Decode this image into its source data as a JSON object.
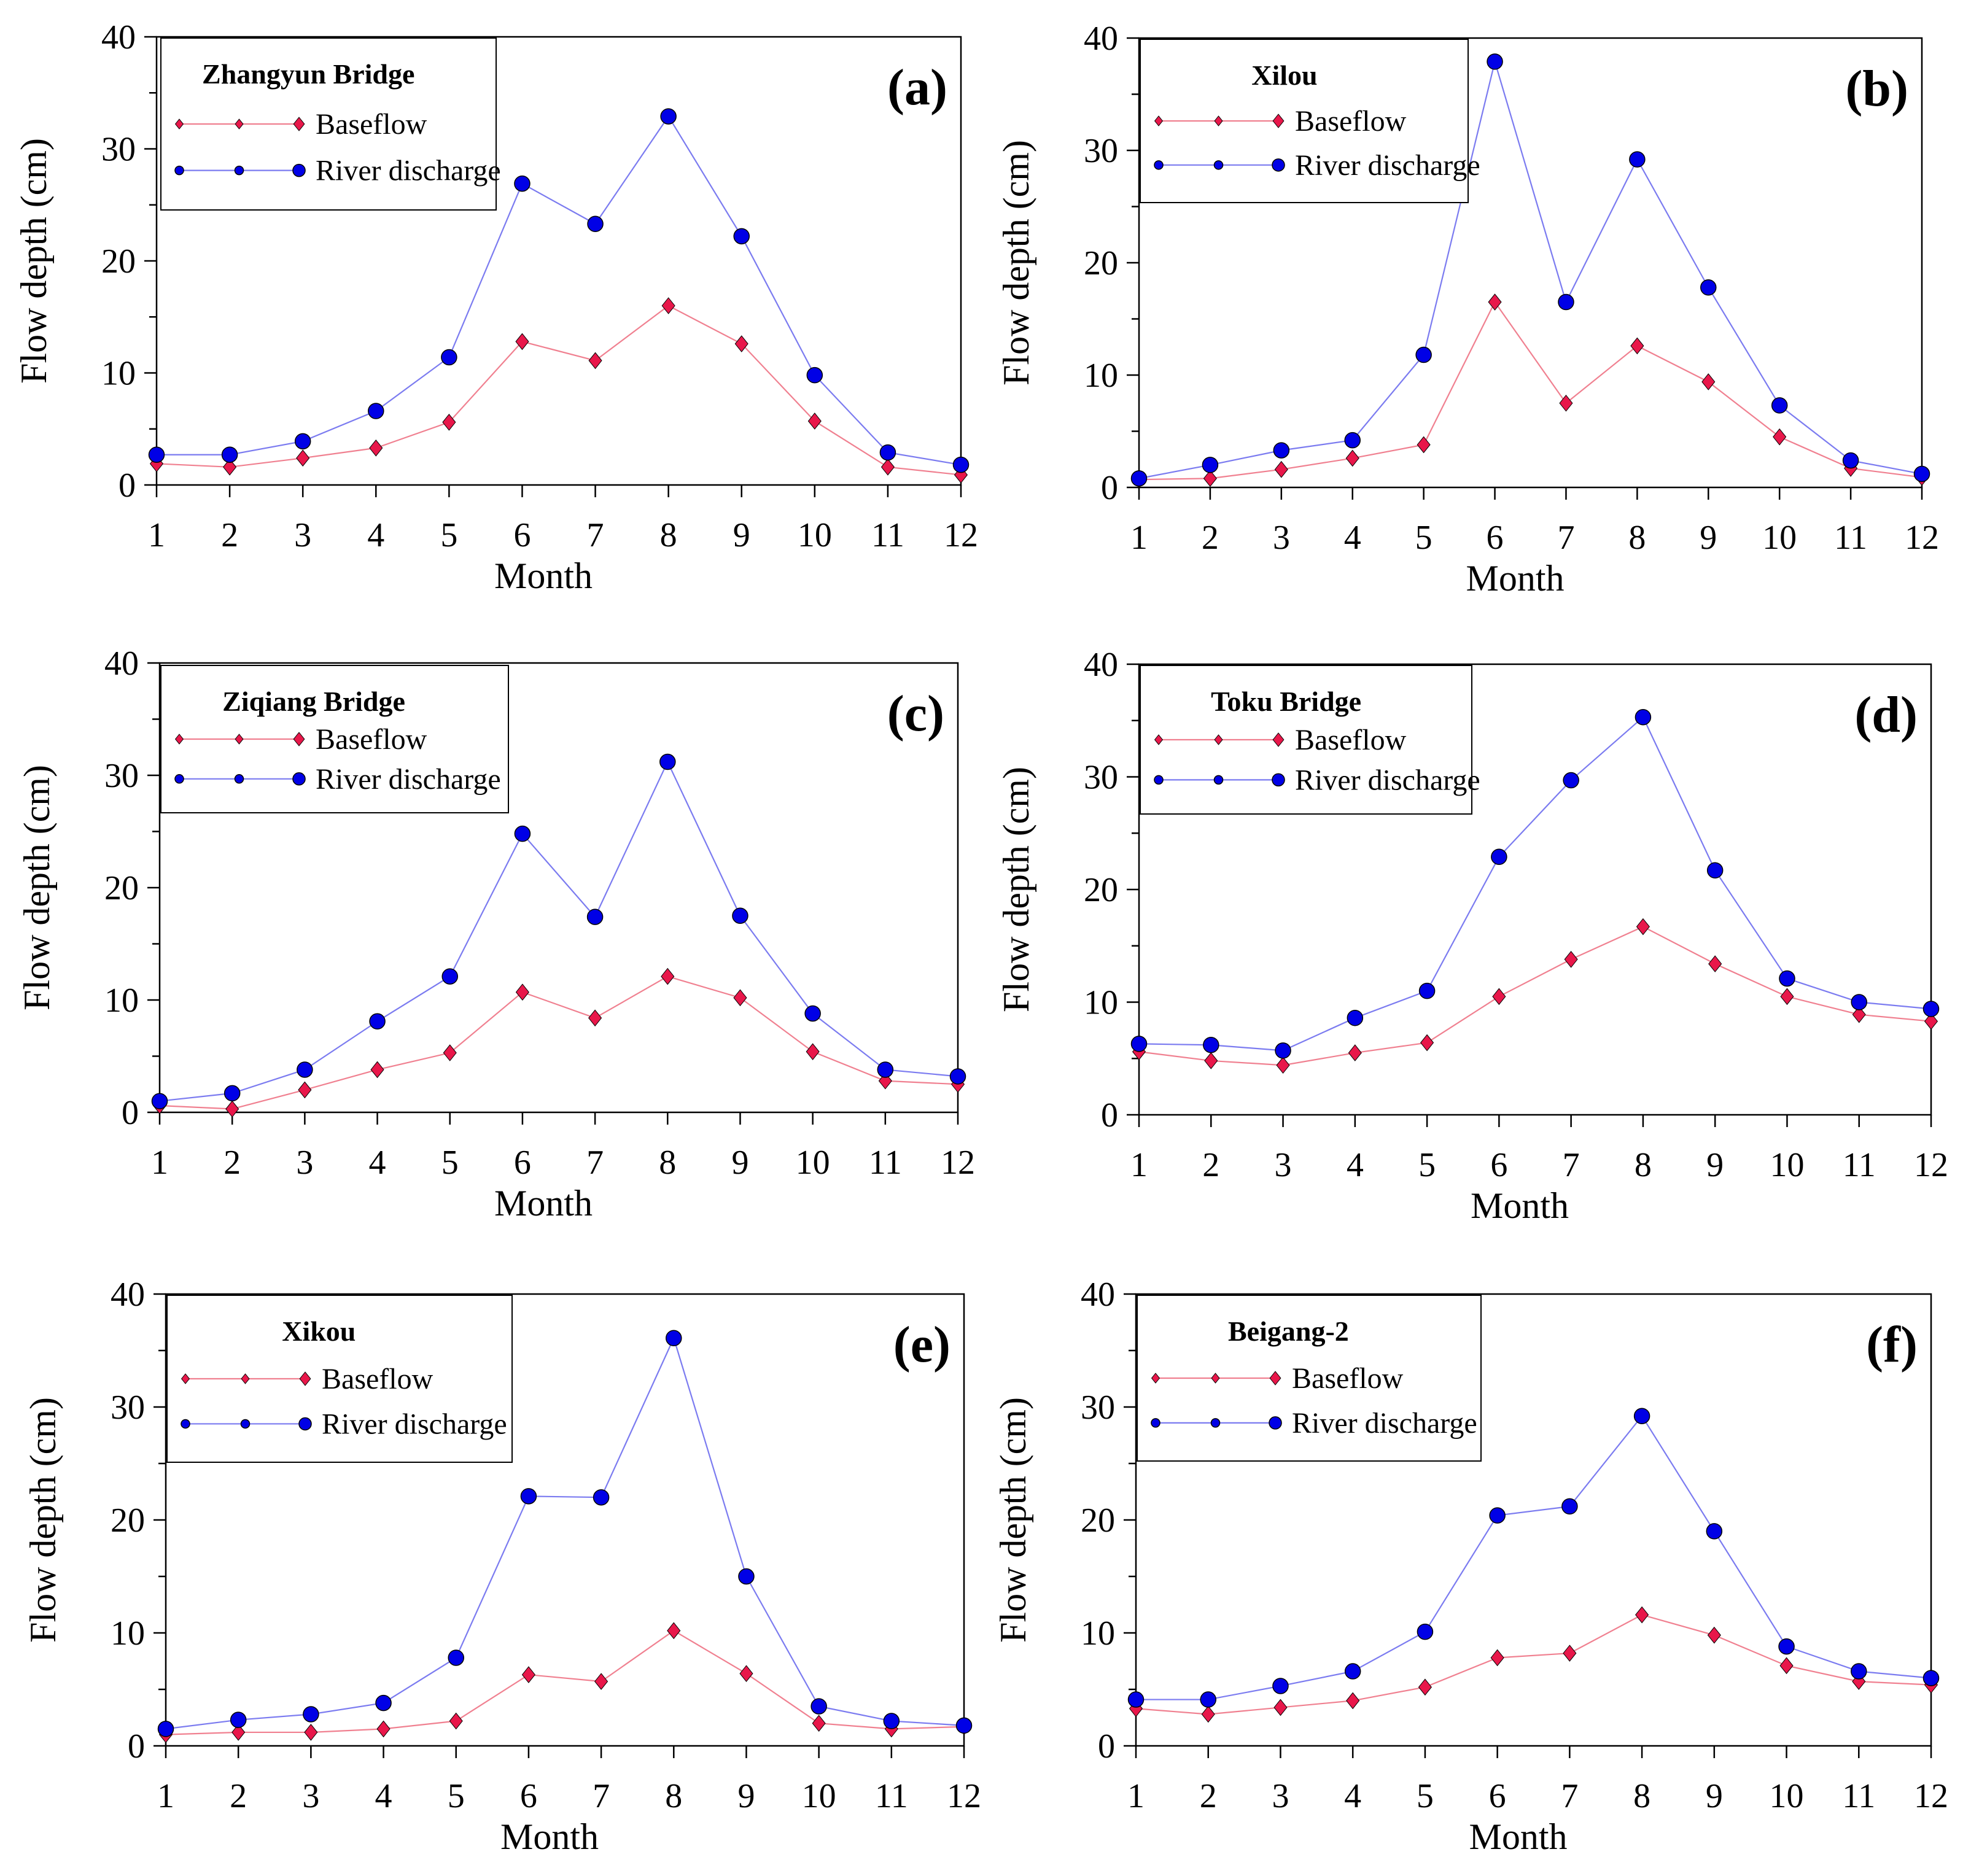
{
  "figure": {
    "panel_count": 6
  },
  "chart_data": [
    {
      "type": "line",
      "panel": "(a)",
      "station": "Zhangyun Bridge",
      "xlabel": "Month",
      "ylabel": "Flow depth (cm)",
      "ylim": [
        0,
        40
      ],
      "yticks": [
        "0",
        "10",
        "20",
        "30",
        "40"
      ],
      "categories": [
        "1",
        "2",
        "3",
        "4",
        "5",
        "6",
        "7",
        "8",
        "9",
        "10",
        "11",
        "12"
      ],
      "series": [
        {
          "name": "Baseflow",
          "color": "#e8174a",
          "marker": "diamond",
          "line_color": "#f08090",
          "values": [
            1.9,
            1.6,
            2.4,
            3.3,
            5.6,
            12.8,
            11.1,
            16.0,
            12.6,
            5.7,
            1.6,
            0.9
          ]
        },
        {
          "name": "River discharge",
          "color": "#0000e6",
          "marker": "circle",
          "line_color": "#7b7bf0",
          "values": [
            2.7,
            2.7,
            3.9,
            6.6,
            11.4,
            26.9,
            23.3,
            32.9,
            22.2,
            9.8,
            2.9,
            1.8
          ]
        }
      ]
    },
    {
      "type": "line",
      "panel": "(b)",
      "station": "Xilou",
      "xlabel": "Month",
      "ylabel": "Flow depth (cm)",
      "ylim": [
        0,
        40
      ],
      "yticks": [
        "0",
        "10",
        "20",
        "30",
        "40"
      ],
      "categories": [
        "1",
        "2",
        "3",
        "4",
        "5",
        "6",
        "7",
        "8",
        "9",
        "10",
        "11",
        "12"
      ],
      "series": [
        {
          "name": "Baseflow",
          "color": "#e8174a",
          "marker": "diamond",
          "line_color": "#f08090",
          "values": [
            0.7,
            0.8,
            1.6,
            2.6,
            3.8,
            16.5,
            7.5,
            12.6,
            9.4,
            4.5,
            1.7,
            0.9
          ]
        },
        {
          "name": "River discharge",
          "color": "#0000e6",
          "marker": "circle",
          "line_color": "#7b7bf0",
          "values": [
            0.8,
            2.0,
            3.3,
            4.2,
            11.8,
            37.9,
            16.5,
            29.2,
            17.8,
            7.3,
            2.4,
            1.2
          ]
        }
      ]
    },
    {
      "type": "line",
      "panel": "(c)",
      "station": "Ziqiang Bridge",
      "xlabel": "Month",
      "ylabel": "Flow depth (cm)",
      "ylim": [
        0,
        40
      ],
      "yticks": [
        "0",
        "10",
        "20",
        "30",
        "40"
      ],
      "categories": [
        "1",
        "2",
        "3",
        "4",
        "5",
        "6",
        "7",
        "8",
        "9",
        "10",
        "11",
        "12"
      ],
      "series": [
        {
          "name": "Baseflow",
          "color": "#e8174a",
          "marker": "diamond",
          "line_color": "#f08090",
          "values": [
            0.6,
            0.3,
            2.0,
            3.8,
            5.3,
            10.7,
            8.4,
            12.1,
            10.2,
            5.4,
            2.8,
            2.5
          ]
        },
        {
          "name": "River discharge",
          "color": "#0000e6",
          "marker": "circle",
          "line_color": "#7b7bf0",
          "values": [
            1.0,
            1.7,
            3.8,
            8.1,
            12.1,
            24.8,
            17.4,
            31.2,
            17.5,
            8.8,
            3.8,
            3.2
          ]
        }
      ]
    },
    {
      "type": "line",
      "panel": "(d)",
      "station": "Toku Bridge",
      "xlabel": "Month",
      "ylabel": "Flow depth (cm)",
      "ylim": [
        0,
        40
      ],
      "yticks": [
        "0",
        "10",
        "20",
        "30",
        "40"
      ],
      "categories": [
        "1",
        "2",
        "3",
        "4",
        "5",
        "6",
        "7",
        "8",
        "9",
        "10",
        "11",
        "12"
      ],
      "series": [
        {
          "name": "Baseflow",
          "color": "#e8174a",
          "marker": "diamond",
          "line_color": "#f08090",
          "values": [
            5.6,
            4.8,
            4.4,
            5.5,
            6.4,
            10.5,
            13.8,
            16.7,
            13.4,
            10.5,
            8.9,
            8.3
          ]
        },
        {
          "name": "River discharge",
          "color": "#0000e6",
          "marker": "circle",
          "line_color": "#7b7bf0",
          "values": [
            6.3,
            6.2,
            5.7,
            8.6,
            11.0,
            22.9,
            29.7,
            35.3,
            21.7,
            12.1,
            10.0,
            9.4
          ]
        }
      ]
    },
    {
      "type": "line",
      "panel": "(e)",
      "station": "Xikou",
      "xlabel": "Month",
      "ylabel": "Flow depth (cm)",
      "ylim": [
        0,
        40
      ],
      "yticks": [
        "0",
        "10",
        "20",
        "30",
        "40"
      ],
      "categories": [
        "1",
        "2",
        "3",
        "4",
        "5",
        "6",
        "7",
        "8",
        "9",
        "10",
        "11",
        "12"
      ],
      "series": [
        {
          "name": "Baseflow",
          "color": "#e8174a",
          "marker": "diamond",
          "line_color": "#f08090",
          "values": [
            1.0,
            1.2,
            1.2,
            1.5,
            2.2,
            6.3,
            5.7,
            10.2,
            6.4,
            2.0,
            1.5,
            1.7
          ]
        },
        {
          "name": "River discharge",
          "color": "#0000e6",
          "marker": "circle",
          "line_color": "#7b7bf0",
          "values": [
            1.5,
            2.3,
            2.8,
            3.8,
            7.8,
            22.1,
            22.0,
            36.1,
            15.0,
            3.5,
            2.2,
            1.8
          ]
        }
      ]
    },
    {
      "type": "line",
      "panel": "(f)",
      "station": "Beigang-2",
      "xlabel": "Month",
      "ylabel": "Flow depth (cm)",
      "ylim": [
        0,
        40
      ],
      "yticks": [
        "0",
        "10",
        "20",
        "30",
        "40"
      ],
      "categories": [
        "1",
        "2",
        "3",
        "4",
        "5",
        "6",
        "7",
        "8",
        "9",
        "10",
        "11",
        "12"
      ],
      "series": [
        {
          "name": "Baseflow",
          "color": "#e8174a",
          "marker": "diamond",
          "line_color": "#f08090",
          "values": [
            3.3,
            2.8,
            3.4,
            4.0,
            5.2,
            7.8,
            8.2,
            11.6,
            9.8,
            7.1,
            5.7,
            5.4
          ]
        },
        {
          "name": "River discharge",
          "color": "#0000e6",
          "marker": "circle",
          "line_color": "#7b7bf0",
          "values": [
            4.1,
            4.1,
            5.3,
            6.6,
            10.1,
            20.4,
            21.2,
            29.2,
            19.0,
            8.8,
            6.6,
            6.0
          ]
        }
      ]
    }
  ]
}
